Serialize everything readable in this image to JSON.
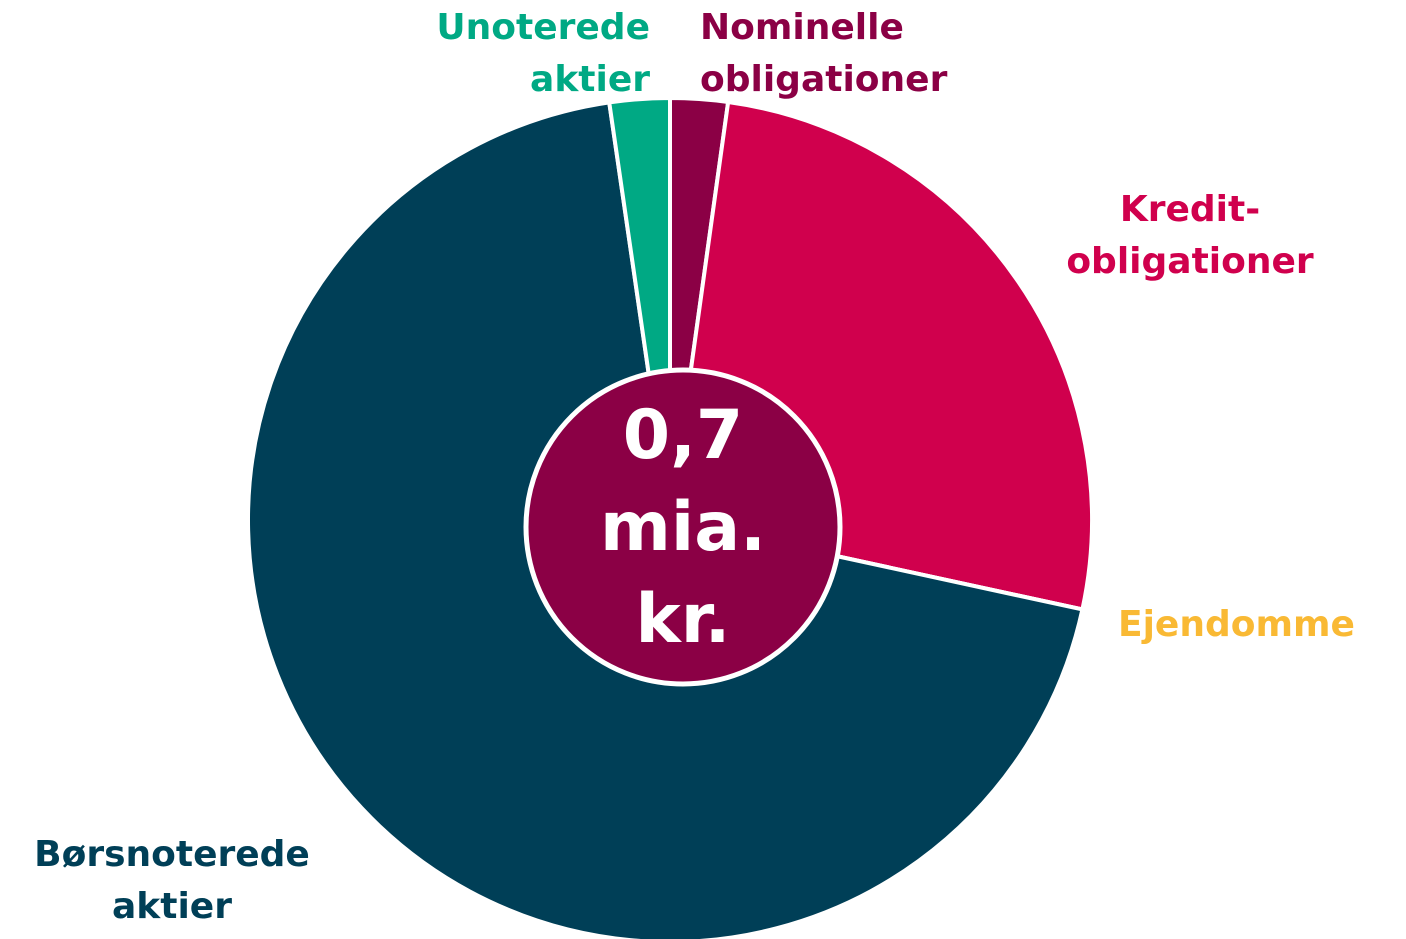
{
  "chart_data": {
    "type": "pie",
    "categories": [
      "Nominelle obligationer",
      "Kredit-obligationer",
      "Ejendomme",
      "Børsnoterede aktier",
      "Unoterede aktier"
    ],
    "values": [
      2.2,
      26.2,
      0,
      69.3,
      2.3
    ],
    "colors": [
      "#8b0045",
      "#d0004d",
      "#f9b934",
      "#003f57",
      "#00a984"
    ],
    "center_label": "0,7 mia. kr.",
    "center_color": "#8b0045"
  }
}
